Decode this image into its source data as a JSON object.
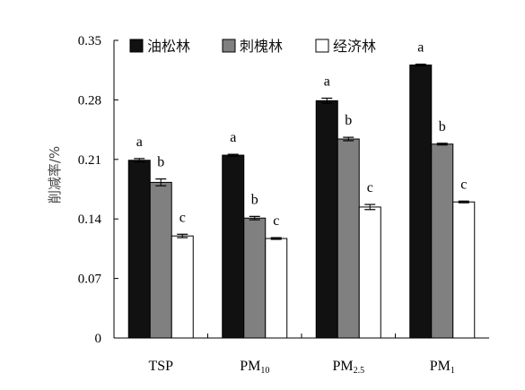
{
  "chart_data": {
    "type": "bar",
    "ylabel": "削减率/%",
    "ylim": [
      0,
      0.35
    ],
    "yticks": [
      "0",
      "0.07",
      "0.14",
      "0.21",
      "0.28",
      "0.35"
    ],
    "categories": [
      {
        "base": "TSP",
        "sub": ""
      },
      {
        "base": "PM",
        "sub": "10"
      },
      {
        "base": "PM",
        "sub": "2.5"
      },
      {
        "base": "PM",
        "sub": "1"
      }
    ],
    "legend_position": "top",
    "series": [
      {
        "name": "油松林",
        "color": "#111111",
        "values": [
          0.209,
          0.215,
          0.279,
          0.321
        ],
        "errors": [
          0.002,
          0.001,
          0.003,
          0.001
        ],
        "letters": [
          "a",
          "a",
          "a",
          "a"
        ]
      },
      {
        "name": "刺槐林",
        "color": "#808080",
        "values": [
          0.183,
          0.141,
          0.234,
          0.228
        ],
        "errors": [
          0.004,
          0.002,
          0.002,
          0.001
        ],
        "letters": [
          "b",
          "b",
          "b",
          "b"
        ]
      },
      {
        "name": "经济林",
        "color": "#ffffff",
        "values": [
          0.12,
          0.117,
          0.154,
          0.16
        ],
        "errors": [
          0.002,
          0.001,
          0.003,
          0.001
        ],
        "letters": [
          "c",
          "c",
          "c",
          "c"
        ]
      }
    ]
  }
}
